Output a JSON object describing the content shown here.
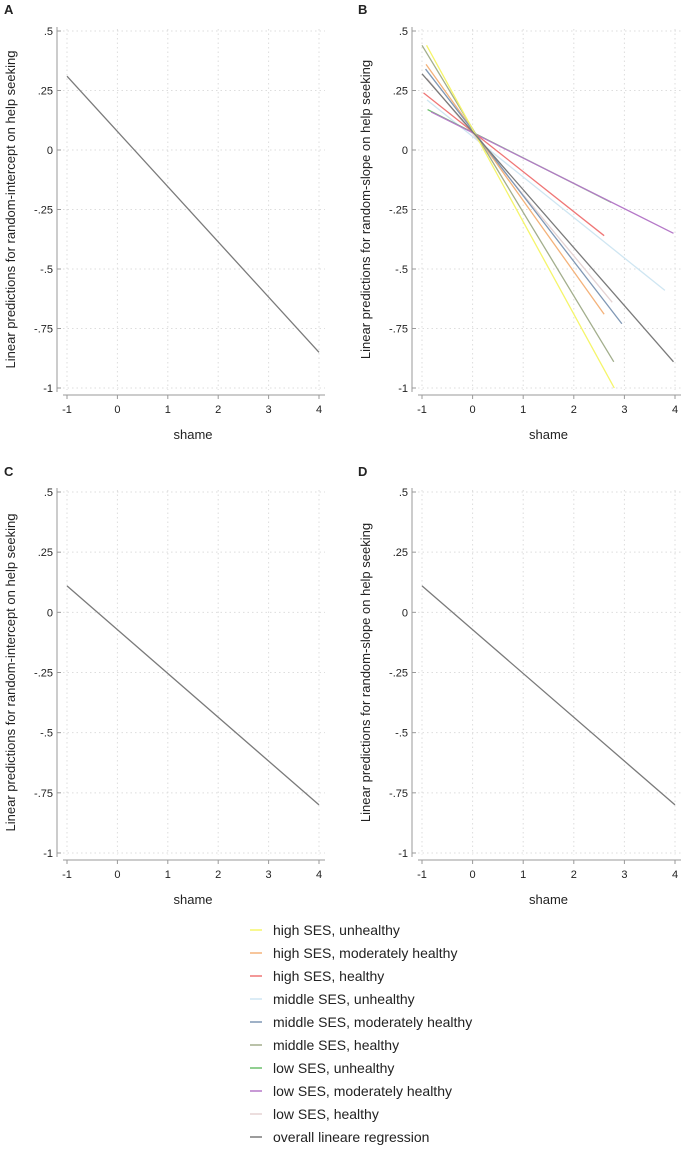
{
  "chart_data": [
    {
      "panel_label": "A",
      "type": "line",
      "xlabel": "shame",
      "ylabel": "Linear predictions for random-intercept on help seeking",
      "xlim": [
        -1,
        4
      ],
      "ylim": [
        -1,
        0.5
      ],
      "grid": true,
      "xticks": [
        "-1",
        "0",
        "1",
        "2",
        "3",
        "4"
      ],
      "yticks": [
        ".5",
        ".25",
        "0",
        "-.25",
        "-.5",
        "-.75",
        "-1"
      ],
      "series": [
        {
          "color": "#7a7a7a",
          "x": [
            -1,
            4
          ],
          "y": [
            0.31,
            -0.85
          ]
        }
      ]
    },
    {
      "panel_label": "B",
      "type": "line",
      "xlabel": "shame",
      "ylabel": "Linear predictions for random-slope on help seeking",
      "xlim": [
        -1,
        4
      ],
      "ylim": [
        -1,
        0.5
      ],
      "grid": true,
      "xticks": [
        "-1",
        "0",
        "1",
        "2",
        "3",
        "4"
      ],
      "yticks": [
        ".5",
        ".25",
        "0",
        "-.25",
        "-.5",
        "-.75",
        "-1"
      ],
      "series": [
        {
          "color": "#cfe6f2",
          "x": [
            -0.9,
            3.8
          ],
          "y": [
            0.21,
            -0.59
          ]
        },
        {
          "color": "#e5d3d3",
          "x": [
            -0.9,
            2.76
          ],
          "y": [
            0.3,
            -0.64
          ]
        },
        {
          "color": "#6cbf6c",
          "x": [
            -0.89,
            2.74
          ],
          "y": [
            0.17,
            -0.22
          ]
        },
        {
          "color": "#b579c8",
          "x": [
            -0.82,
            3.97
          ],
          "y": [
            0.16,
            -0.35
          ]
        },
        {
          "color": "#ef7676",
          "x": [
            -0.97,
            2.6
          ],
          "y": [
            0.24,
            -0.36
          ]
        },
        {
          "color": "#f4b27a",
          "x": [
            -0.92,
            2.6
          ],
          "y": [
            0.36,
            -0.69
          ]
        },
        {
          "color": "#7f97b4",
          "x": [
            -0.93,
            2.95
          ],
          "y": [
            0.34,
            -0.73
          ]
        },
        {
          "color": "#a2ae8c",
          "x": [
            -1.0,
            2.79
          ],
          "y": [
            0.44,
            -0.89
          ]
        },
        {
          "color": "#f5f56a",
          "x": [
            -0.91,
            2.8
          ],
          "y": [
            0.44,
            -1.0
          ]
        },
        {
          "color": "#7a7a7a",
          "x": [
            -1.0,
            3.97
          ],
          "y": [
            0.32,
            -0.89
          ]
        }
      ]
    },
    {
      "panel_label": "C",
      "type": "line",
      "xlabel": "shame",
      "ylabel": "Linear predictions for random-intercept on help seeking",
      "xlim": [
        -1,
        4
      ],
      "ylim": [
        -1,
        0.5
      ],
      "grid": true,
      "xticks": [
        "-1",
        "0",
        "1",
        "2",
        "3",
        "4"
      ],
      "yticks": [
        ".5",
        ".25",
        "0",
        "-.25",
        "-.5",
        "-.75",
        "-1"
      ],
      "series": [
        {
          "color": "#7a7a7a",
          "x": [
            -1,
            4
          ],
          "y": [
            0.11,
            -0.8
          ]
        }
      ]
    },
    {
      "panel_label": "D",
      "type": "line",
      "xlabel": "shame",
      "ylabel": "Linear predictions for random-slope on help seeking",
      "xlim": [
        -1,
        4
      ],
      "ylim": [
        -1,
        0.5
      ],
      "grid": true,
      "xticks": [
        "-1",
        "0",
        "1",
        "2",
        "3",
        "4"
      ],
      "yticks": [
        ".5",
        ".25",
        "0",
        "-.25",
        "-.5",
        "-.75",
        "-1"
      ],
      "series": [
        {
          "color": "#7a7a7a",
          "x": [
            -1,
            4
          ],
          "y": [
            0.11,
            -0.8
          ]
        }
      ]
    }
  ],
  "legend": {
    "placement": "bottom-center",
    "items": [
      {
        "label": "high SES, unhealthy",
        "color": "#f5f56a"
      },
      {
        "label": "high SES, moderately healthy",
        "color": "#f4b27a"
      },
      {
        "label": "high SES, healthy",
        "color": "#ef7676"
      },
      {
        "label": "middle SES, unhealthy",
        "color": "#cfe6f2"
      },
      {
        "label": "middle SES, moderately healthy",
        "color": "#7f97b4"
      },
      {
        "label": "middle SES, healthy",
        "color": "#a2ae8c"
      },
      {
        "label": "low SES, unhealthy",
        "color": "#6cbf6c"
      },
      {
        "label": "low SES, moderately healthy",
        "color": "#b579c8"
      },
      {
        "label": "low SES, healthy",
        "color": "#e5d3d3"
      },
      {
        "label": "overall lineare regression",
        "color": "#7a7a7a"
      }
    ]
  }
}
